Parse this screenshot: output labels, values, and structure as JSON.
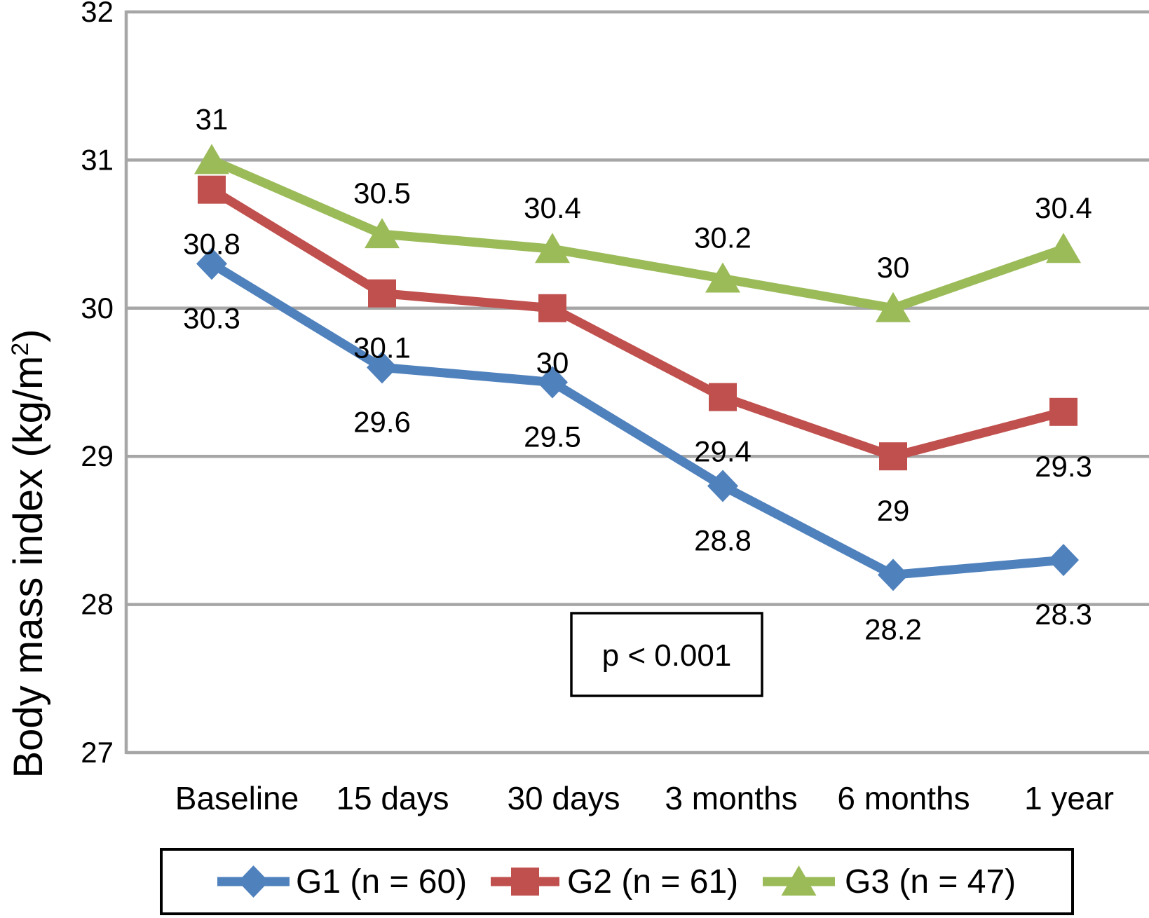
{
  "chart_data": {
    "type": "line",
    "title": "",
    "ylabel": {
      "text": "Body mass index (kg/m²)",
      "prefix": "Body mass index (kg/m",
      "sup": "2",
      "suffix": ")"
    },
    "xlabel": "",
    "ylim": [
      27,
      32
    ],
    "yticks": [
      32,
      31,
      30,
      29,
      28,
      27
    ],
    "grid": "horizontal",
    "legend_position": "bottom",
    "categories": [
      "Baseline",
      "15 days",
      "30 days",
      "3 months",
      "6 months",
      "1 year"
    ],
    "series": [
      {
        "name": "G1 (n = 60)",
        "marker": "diamond",
        "color": "#4F81BD",
        "values": [
          30.3,
          29.6,
          29.5,
          28.8,
          28.2,
          28.3
        ],
        "labels": [
          "30.3",
          "29.6",
          "29.5",
          "28.8",
          "28.2",
          "28.3"
        ],
        "label_side": "below"
      },
      {
        "name": "G2 (n = 61)",
        "marker": "square",
        "color": "#C0504D",
        "values": [
          30.8,
          30.1,
          30,
          29.4,
          29,
          29.3
        ],
        "labels": [
          "30.8",
          "30.1",
          "30",
          "29.4",
          "29",
          "29.3"
        ],
        "label_side": "below"
      },
      {
        "name": "G3 (n = 47)",
        "marker": "triangle",
        "color": "#9BBB59",
        "values": [
          31,
          30.5,
          30.4,
          30.2,
          30,
          30.4
        ],
        "labels": [
          "31",
          "30.5",
          "30.4",
          "30.2",
          "30",
          "30.4"
        ],
        "label_side": "above"
      }
    ],
    "annotation": {
      "text": "p < 0.001"
    },
    "colors": {
      "gridline": "#A6A6A6",
      "axis": "#A6A6A6",
      "text": "#000000",
      "background": "#FFFFFF"
    }
  }
}
